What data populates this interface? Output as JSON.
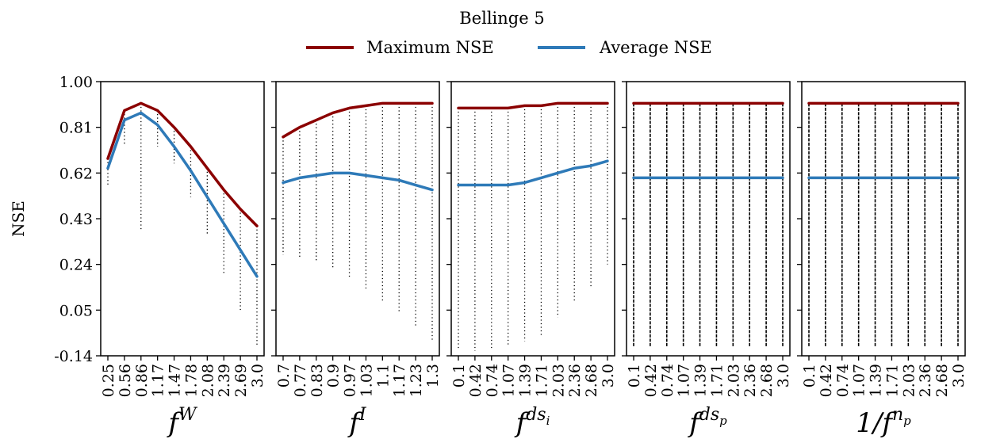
{
  "chart_data": {
    "type": "line",
    "title": "Bellinge 5",
    "ylabel": "NSE",
    "ylim": [
      -0.14,
      1.0
    ],
    "yticks": [
      "1.00",
      "0.81",
      "0.62",
      "0.43",
      "0.24",
      "0.05",
      "-0.14"
    ],
    "legend": {
      "placement": "top-center",
      "entries": [
        "Maximum NSE",
        "Average NSE"
      ]
    },
    "colors": {
      "max": "#8b0000",
      "avg": "#2e7ab8",
      "points": "#000000"
    },
    "panels": [
      {
        "xlabel": {
          "base": "f",
          "sup": "W",
          "sub": ""
        },
        "categories": [
          "0.25",
          "0.56",
          "0.86",
          "1.17",
          "1.47",
          "1.78",
          "2.08",
          "2.39",
          "2.69",
          "3.0"
        ],
        "series": [
          {
            "name": "Maximum NSE",
            "values": [
              0.68,
              0.88,
              0.91,
              0.88,
              0.81,
              0.73,
              0.64,
              0.55,
              0.47,
              0.4
            ]
          },
          {
            "name": "Average NSE",
            "values": [
              0.64,
              0.84,
              0.87,
              0.82,
              0.73,
              0.63,
              0.52,
              0.41,
              0.3,
              0.19
            ]
          }
        ],
        "scatter_min": [
          0.57,
          0.74,
          0.38,
          0.73,
          0.66,
          0.52,
          0.36,
          0.2,
          0.04,
          -0.1
        ]
      },
      {
        "xlabel": {
          "base": "f",
          "sup": "I",
          "sub": ""
        },
        "categories": [
          "0.7",
          "0.77",
          "0.83",
          "0.9",
          "0.97",
          "1.03",
          "1.1",
          "1.17",
          "1.23",
          "1.3"
        ],
        "series": [
          {
            "name": "Maximum NSE",
            "values": [
              0.77,
              0.81,
              0.84,
              0.87,
              0.89,
              0.9,
              0.91,
              0.91,
              0.91,
              0.91
            ]
          },
          {
            "name": "Average NSE",
            "values": [
              0.58,
              0.6,
              0.61,
              0.62,
              0.62,
              0.61,
              0.6,
              0.59,
              0.57,
              0.55
            ]
          }
        ],
        "scatter_min": [
          0.28,
          0.27,
          0.25,
          0.22,
          0.18,
          0.14,
          0.09,
          0.04,
          -0.02,
          -0.08
        ]
      },
      {
        "xlabel": {
          "base": "f",
          "sup": "ds",
          "sub": "i"
        },
        "categories": [
          "0.1",
          "0.42",
          "0.74",
          "1.07",
          "1.39",
          "1.71",
          "2.03",
          "2.36",
          "2.68",
          "3.0"
        ],
        "series": [
          {
            "name": "Maximum NSE",
            "values": [
              0.89,
              0.89,
              0.89,
              0.89,
              0.9,
              0.9,
              0.91,
              0.91,
              0.91,
              0.91
            ]
          },
          {
            "name": "Average NSE",
            "values": [
              0.57,
              0.57,
              0.57,
              0.57,
              0.58,
              0.6,
              0.62,
              0.64,
              0.65,
              0.67
            ]
          }
        ],
        "scatter_min": [
          -0.11,
          -0.12,
          -0.11,
          -0.1,
          -0.08,
          -0.06,
          0.02,
          0.08,
          0.14,
          0.24
        ]
      },
      {
        "xlabel": {
          "base": "f",
          "sup": "ds",
          "sub": "p"
        },
        "categories": [
          "0.1",
          "0.42",
          "0.74",
          "1.07",
          "1.39",
          "1.71",
          "2.03",
          "2.36",
          "2.68",
          "3.0"
        ],
        "series": [
          {
            "name": "Maximum NSE",
            "values": [
              0.91,
              0.91,
              0.91,
              0.91,
              0.91,
              0.91,
              0.91,
              0.91,
              0.91,
              0.91
            ]
          },
          {
            "name": "Average NSE",
            "values": [
              0.6,
              0.6,
              0.6,
              0.6,
              0.6,
              0.6,
              0.6,
              0.6,
              0.6,
              0.6
            ]
          }
        ],
        "scatter_min": [
          -0.1,
          -0.1,
          -0.1,
          -0.1,
          -0.1,
          -0.1,
          -0.1,
          -0.1,
          -0.1,
          -0.1
        ]
      },
      {
        "xlabel": {
          "base": "1/f",
          "sup": "n",
          "sub": "p"
        },
        "categories": [
          "0.1",
          "0.42",
          "0.74",
          "1.07",
          "1.39",
          "1.71",
          "2.03",
          "2.36",
          "2.68",
          "3.0"
        ],
        "series": [
          {
            "name": "Maximum NSE",
            "values": [
              0.91,
              0.91,
              0.91,
              0.91,
              0.91,
              0.91,
              0.91,
              0.91,
              0.91,
              0.91
            ]
          },
          {
            "name": "Average NSE",
            "values": [
              0.6,
              0.6,
              0.6,
              0.6,
              0.6,
              0.6,
              0.6,
              0.6,
              0.6,
              0.6
            ]
          }
        ],
        "scatter_min": [
          -0.1,
          -0.1,
          -0.1,
          -0.1,
          -0.1,
          -0.1,
          -0.1,
          -0.1,
          -0.1,
          -0.1
        ]
      }
    ]
  }
}
